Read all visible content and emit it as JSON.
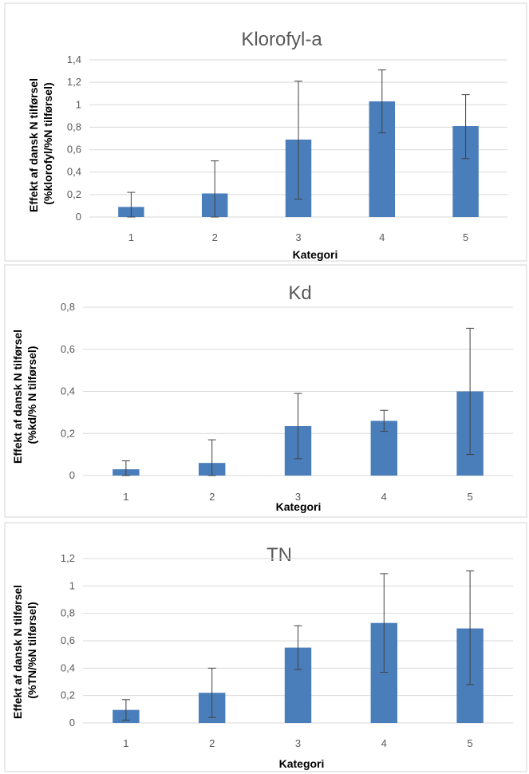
{
  "chart_data": [
    {
      "type": "bar",
      "title": "Klorofyl-a",
      "xlabel": "Kategori",
      "ylabel_lines": [
        "Effekt af dansk N tilførsel",
        "(%klorofyl/%N tilførsel)"
      ],
      "categories": [
        "1",
        "2",
        "3",
        "4",
        "5"
      ],
      "values": [
        0.09,
        0.21,
        0.69,
        1.03,
        0.81
      ],
      "error_low": [
        0.0,
        0.0,
        0.16,
        0.75,
        0.52
      ],
      "error_high": [
        0.22,
        0.5,
        1.21,
        1.31,
        1.09
      ],
      "ylim": [
        0,
        1.4
      ],
      "yticks": [
        "0",
        "0,2",
        "0,4",
        "0,6",
        "0,8",
        "1",
        "1,2",
        "1,4"
      ],
      "grid": true,
      "bar_color": "#4a7ebb"
    },
    {
      "type": "bar",
      "title": "Kd",
      "xlabel": "Kategori",
      "ylabel_lines": [
        "Effekt af dansk N tilførsel",
        "(%kd/% N tilførsel)"
      ],
      "categories": [
        "1",
        "2",
        "3",
        "4",
        "5"
      ],
      "values": [
        0.03,
        0.06,
        0.235,
        0.26,
        0.4
      ],
      "error_low": [
        0.0,
        0.0,
        0.08,
        0.21,
        0.1
      ],
      "error_high": [
        0.07,
        0.17,
        0.39,
        0.31,
        0.7
      ],
      "ylim": [
        0,
        0.8
      ],
      "yticks": [
        "0",
        "0,2",
        "0,4",
        "0,6",
        "0,8"
      ],
      "grid": true,
      "bar_color": "#4a7ebb"
    },
    {
      "type": "bar",
      "title": "TN",
      "xlabel": "Kategori",
      "ylabel_lines": [
        "Effekt af dansk N tilførsel",
        "(%TN/%N tilførsel)"
      ],
      "categories": [
        "1",
        "2",
        "3",
        "4",
        "5"
      ],
      "values": [
        0.095,
        0.22,
        0.55,
        0.73,
        0.69
      ],
      "error_low": [
        0.02,
        0.04,
        0.39,
        0.37,
        0.28
      ],
      "error_high": [
        0.17,
        0.4,
        0.71,
        1.09,
        1.11
      ],
      "ylim": [
        0,
        1.2
      ],
      "yticks": [
        "0",
        "0,2",
        "0,4",
        "0,6",
        "0,8",
        "1",
        "1,2"
      ],
      "grid": true,
      "bar_color": "#4a7ebb"
    }
  ]
}
